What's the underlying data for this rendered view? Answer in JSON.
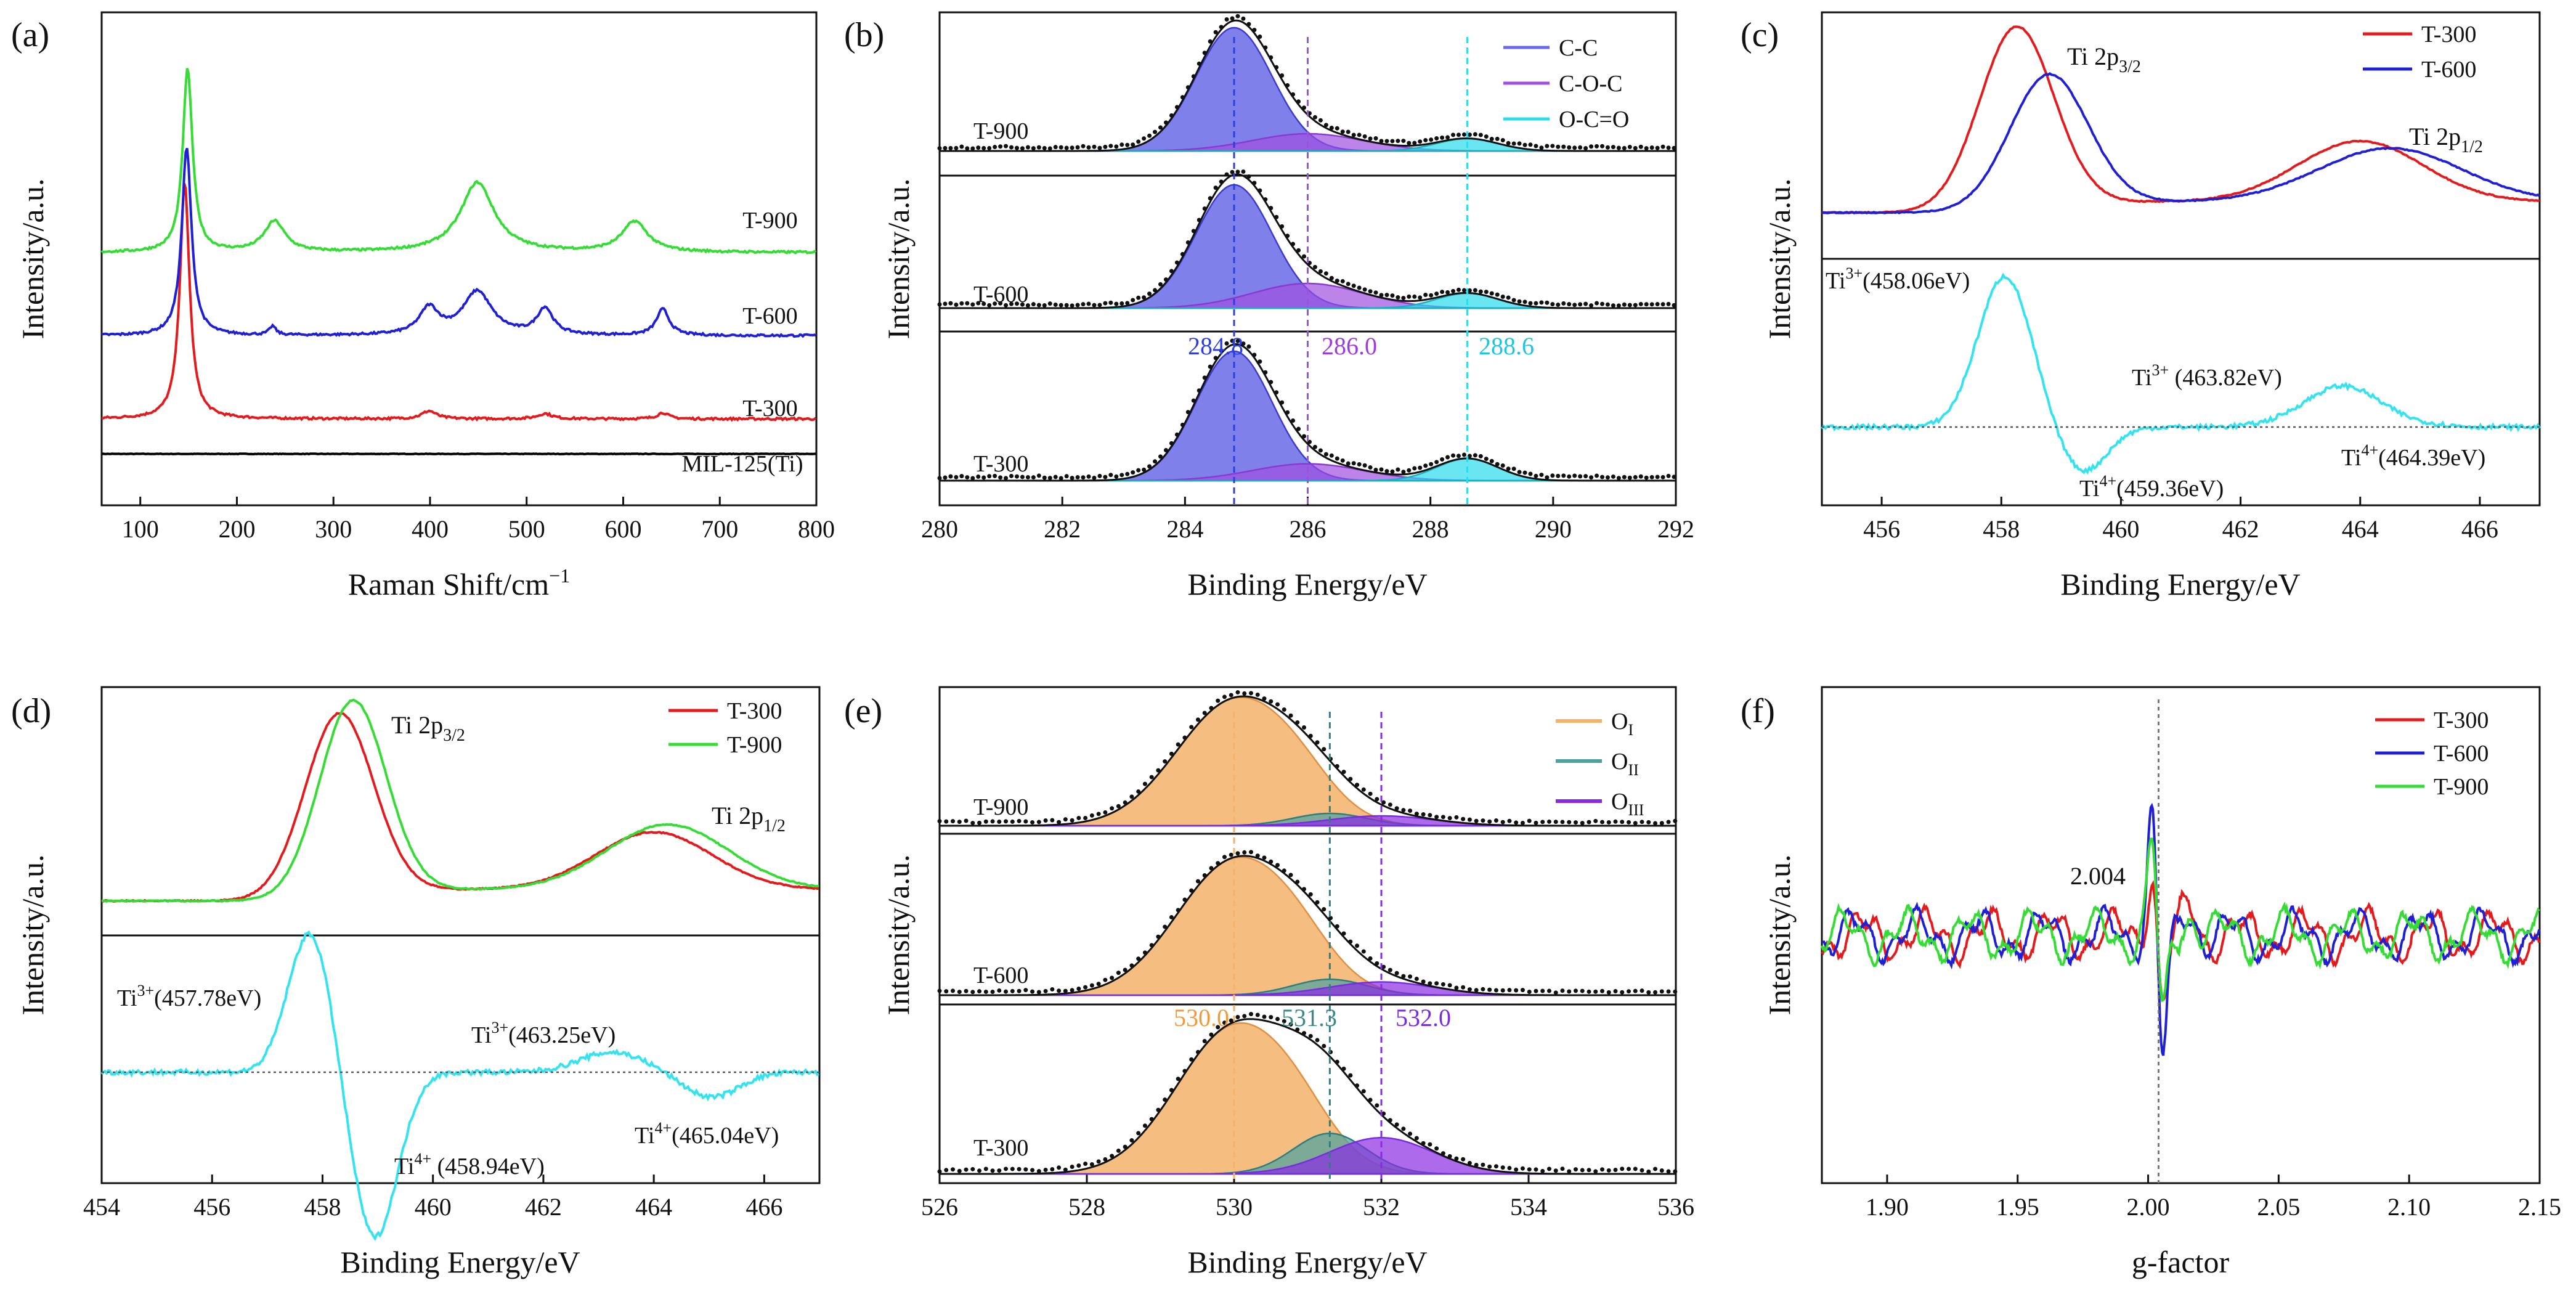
{
  "chart_data": [
    {
      "id": "a",
      "type": "line",
      "panel_label": "(a)",
      "xlabel": "Raman Shift/cm",
      "xlabel_sup": "−1",
      "ylabel": "Intensity/a.u.",
      "xlim": [
        60,
        800
      ],
      "ylim": [
        0,
        100
      ],
      "xticks": [
        "100",
        "200",
        "300",
        "400",
        "500",
        "600",
        "700",
        "800"
      ],
      "xtick_values": [
        100,
        200,
        300,
        400,
        500,
        600,
        700,
        800
      ],
      "series": [
        {
          "name": "MIL-125(Ti)",
          "color": "#000000",
          "label": "MIL-125(Ti)",
          "baseline": 4,
          "noise": 0.05,
          "peaks": []
        },
        {
          "name": "T-300",
          "color": "#e41a1c",
          "label": "T-300",
          "baseline": 12,
          "noise": 0.25,
          "peaks": [
            [
              146,
              54,
              6
            ],
            [
              399,
              1.8,
              9
            ],
            [
              519,
              1.2,
              9
            ],
            [
              641,
              1.4,
              7
            ]
          ]
        },
        {
          "name": "T-600",
          "color": "#1f1fd6",
          "label": "T-600",
          "baseline": 31,
          "noise": 0.25,
          "peaks": [
            [
              148,
              43,
              6
            ],
            [
              237,
              2,
              4
            ],
            [
              399,
              6,
              12
            ],
            [
              449,
              10,
              18
            ],
            [
              519,
              6,
              10
            ],
            [
              641,
              6,
              8
            ]
          ]
        },
        {
          "name": "T-900",
          "color": "#33dd33",
          "label": "T-900",
          "baseline": 50,
          "noise": 0.25,
          "peaks": [
            [
              149,
              42,
              6
            ],
            [
              239,
              7,
              13
            ],
            [
              449,
              16,
              21
            ],
            [
              612,
              7,
              16
            ]
          ]
        }
      ]
    },
    {
      "id": "b",
      "type": "line",
      "panel_label": "(b)",
      "xlabel": "Binding Energy/eV",
      "ylabel": "Intensity/a.u.",
      "xlim": [
        280,
        292
      ],
      "xticks": [
        "280",
        "282",
        "284",
        "286",
        "288",
        "290",
        "292"
      ],
      "xtick_values": [
        280,
        282,
        284,
        286,
        288,
        290,
        292
      ],
      "samples": [
        "T-900",
        "T-600",
        "T-300"
      ],
      "components": [
        {
          "name": "C-C",
          "position": 284.8,
          "color": "#6a6ae8",
          "width": 0.62,
          "amps": [
            1.0,
            1.0,
            1.0
          ]
        },
        {
          "name": "C-O-C",
          "position": 286.0,
          "color": "#a050e0",
          "width": 0.9,
          "amps": [
            0.14,
            0.2,
            0.13
          ]
        },
        {
          "name": "O-C=O",
          "position": 288.6,
          "color": "#2bdcec",
          "width": 0.5,
          "amps": [
            0.1,
            0.12,
            0.17
          ]
        }
      ],
      "peak_labels": [
        "284.8",
        "286.0",
        "288.6"
      ]
    },
    {
      "id": "c",
      "type": "line",
      "panel_label": "(c)",
      "xlabel": "Binding Energy/eV",
      "ylabel": "Intensity/a.u.",
      "xlim": [
        455,
        467
      ],
      "xticks": [
        "456",
        "458",
        "460",
        "462",
        "464",
        "466"
      ],
      "xtick_values": [
        456,
        458,
        460,
        462,
        464,
        466
      ],
      "series": [
        {
          "name": "T-300",
          "color": "#e41a1c",
          "peaks": [
            [
              458.25,
              1.0,
              0.62
            ],
            [
              464.0,
              0.34,
              1.05
            ]
          ]
        },
        {
          "name": "T-600",
          "color": "#1f1fd6",
          "peaks": [
            [
              458.8,
              0.72,
              0.65
            ],
            [
              464.5,
              0.3,
              1.2
            ]
          ]
        },
        {
          "name": "Difference",
          "color": "#33e3f0",
          "peaks": [
            [
              458.06,
              1.0,
              0.45
            ],
            [
              459.36,
              -0.3,
              0.4
            ],
            [
              463.82,
              0.3,
              0.7
            ],
            [
              464.39,
              -0.06,
              0.5
            ]
          ]
        }
      ],
      "annotations": {
        "p32": "Ti 2p",
        "p32_sub": "3/2",
        "p12": "Ti 2p",
        "p12_sub": "1/2",
        "ti3a": "(458.06eV)",
        "ti3b": " (463.82eV)",
        "ti4a": "(459.36eV)",
        "ti4b": "(464.39eV)",
        "ti_base": "Ti",
        "sup3": "3+",
        "sup4": "4+"
      }
    },
    {
      "id": "d",
      "type": "line",
      "panel_label": "(d)",
      "xlabel": "Binding Energy/eV",
      "ylabel": "Intensity/a.u.",
      "xlim": [
        454,
        467
      ],
      "xticks": [
        "454",
        "456",
        "458",
        "460",
        "462",
        "464",
        "466"
      ],
      "xtick_values": [
        454,
        456,
        458,
        460,
        462,
        464,
        466
      ],
      "series": [
        {
          "name": "T-300",
          "color": "#e41a1c",
          "peaks": [
            [
              458.3,
              0.94,
              0.62
            ],
            [
              464.0,
              0.3,
              1.05
            ]
          ]
        },
        {
          "name": "T-900",
          "color": "#33dd33",
          "peaks": [
            [
              458.55,
              1.0,
              0.6
            ],
            [
              464.25,
              0.34,
              1.1
            ]
          ]
        },
        {
          "name": "Difference",
          "color": "#33e3f0",
          "peaks": [
            [
              457.78,
              0.85,
              0.4
            ],
            [
              458.94,
              -1.0,
              0.42
            ],
            [
              463.25,
              0.12,
              0.6
            ],
            [
              465.04,
              -0.15,
              0.5
            ]
          ]
        }
      ],
      "annotations": {
        "p32": "Ti 2p",
        "p32_sub": "3/2",
        "p12": "Ti 2p",
        "p12_sub": "1/2",
        "ti3a": "(457.78eV)",
        "ti3b": "(463.25eV)",
        "ti4a": " (458.94eV)",
        "ti4b": "(465.04eV)",
        "ti_base": "Ti",
        "sup3": "3+",
        "sup4": "4+"
      }
    },
    {
      "id": "e",
      "type": "line",
      "panel_label": "(e)",
      "xlabel": "Binding Energy/eV",
      "ylabel": "Intensity/a.u.",
      "xlim": [
        526,
        536
      ],
      "xticks": [
        "526",
        "528",
        "530",
        "532",
        "534",
        "536"
      ],
      "xtick_values": [
        526,
        528,
        530,
        532,
        534,
        536
      ],
      "samples": [
        "T-900",
        "T-600",
        "T-300"
      ],
      "components": [
        {
          "name": "O",
          "sub": "I",
          "position": 530.0,
          "color": "#f5b26b",
          "width": 0.78,
          "amps": [
            1.0,
            1.0,
            1.0
          ]
        },
        {
          "name": "O",
          "sub": "II",
          "position": 531.3,
          "color": "#4aa3a0",
          "width": 0.5,
          "amps": [
            0.1,
            0.12,
            0.28
          ]
        },
        {
          "name": "O",
          "sub": "III",
          "position": 532.0,
          "color": "#8a2be2",
          "width": 0.7,
          "amps": [
            0.08,
            0.1,
            0.25
          ]
        }
      ],
      "peak_labels": [
        "530.0",
        "531.3",
        "532.0"
      ]
    },
    {
      "id": "f",
      "type": "line",
      "panel_label": "(f)",
      "xlabel": "g-factor",
      "ylabel": "Intensity/a.u.",
      "xlim": [
        1.875,
        2.15
      ],
      "xticks": [
        "1.90",
        "1.95",
        "2.00",
        "2.05",
        "2.10",
        "2.15"
      ],
      "xtick_values": [
        1.9,
        1.95,
        2.0,
        2.05,
        2.1,
        2.15
      ],
      "marker_value": "2.004",
      "series": [
        {
          "name": "T-300",
          "color": "#e41a1c",
          "amp": 0.55
        },
        {
          "name": "T-600",
          "color": "#1f1fd6",
          "amp": 1.0
        },
        {
          "name": "T-900",
          "color": "#33dd33",
          "amp": 0.72
        }
      ]
    }
  ]
}
